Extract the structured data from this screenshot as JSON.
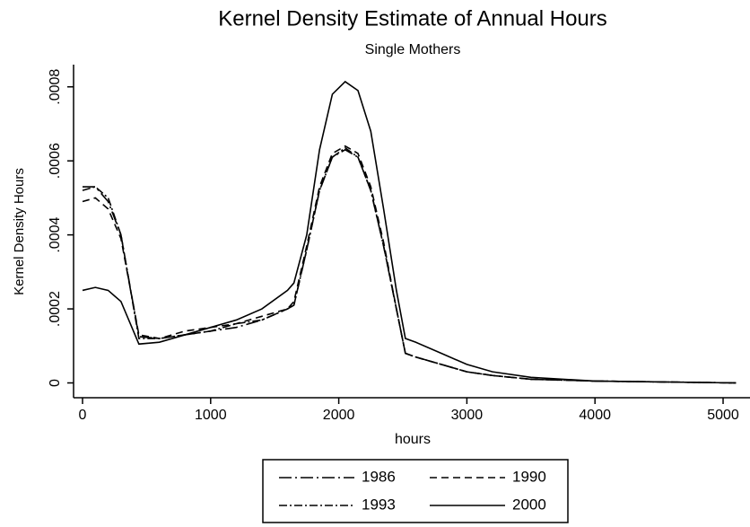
{
  "chart_data": {
    "type": "line",
    "title": "Kernel Density Estimate of Annual Hours",
    "subtitle": "Single Mothers",
    "x_label": "hours",
    "y_label": "Kernel Density Hours",
    "x": [
      0,
      100,
      200,
      300,
      440,
      600,
      800,
      1000,
      1200,
      1400,
      1600,
      1650,
      1750,
      1850,
      1950,
      2050,
      2150,
      2250,
      2350,
      2450,
      2520,
      2600,
      2800,
      3000,
      3200,
      3500,
      4000,
      5100
    ],
    "series": [
      {
        "name": "1986",
        "color": "#000000",
        "dash": "14,4,2,4",
        "values": [
          0.00053,
          0.00053,
          0.00049,
          0.0004,
          0.000125,
          0.00012,
          0.00013,
          0.00014,
          0.00015,
          0.00017,
          0.0002,
          0.00021,
          0.00036,
          0.00052,
          0.00061,
          0.00063,
          0.00061,
          0.00052,
          0.00037,
          0.0002,
          8e-05,
          7e-05,
          5e-05,
          3e-05,
          2e-05,
          1e-05,
          5e-06,
          0
        ]
      },
      {
        "name": "1990",
        "color": "#000000",
        "dash": "8,5",
        "values": [
          0.00049,
          0.0005,
          0.00047,
          0.00039,
          0.00013,
          0.00012,
          0.00014,
          0.00015,
          0.00016,
          0.00018,
          0.0002,
          0.00022,
          0.00037,
          0.00053,
          0.00062,
          0.00064,
          0.00062,
          0.00053,
          0.00038,
          0.0002,
          8e-05,
          7e-05,
          5e-05,
          3e-05,
          2e-05,
          1e-05,
          5e-06,
          0
        ]
      },
      {
        "name": "1993",
        "color": "#000000",
        "dash": "9,3,2,3",
        "values": [
          0.00052,
          0.00053,
          0.0005,
          0.0004,
          0.00012,
          0.00012,
          0.00013,
          0.00014,
          0.00016,
          0.00017,
          0.0002,
          0.00021,
          0.00036,
          0.00052,
          0.00061,
          0.000635,
          0.00061,
          0.00052,
          0.00037,
          0.0002,
          8e-05,
          7e-05,
          5e-05,
          3e-05,
          2e-05,
          1e-05,
          5e-06,
          0
        ]
      },
      {
        "name": "2000",
        "color": "#000000",
        "dash": "none",
        "values": [
          0.00025,
          0.000258,
          0.00025,
          0.00022,
          0.000105,
          0.00011,
          0.00013,
          0.00015,
          0.00017,
          0.0002,
          0.00025,
          0.00027,
          0.0004,
          0.00063,
          0.00078,
          0.000814,
          0.00079,
          0.00068,
          0.00047,
          0.00025,
          0.00012,
          0.00011,
          8e-05,
          5e-05,
          3e-05,
          1.5e-05,
          5e-06,
          0
        ]
      }
    ],
    "xlim": [
      -70,
      5210
    ],
    "ylim": [
      -4e-05,
      0.00086
    ],
    "xticks": [
      0,
      1000,
      2000,
      3000,
      4000,
      5000
    ],
    "yticks": [
      0,
      {
        "value": 0.0002,
        "label": ".0002"
      },
      {
        "value": 0.0004,
        "label": ".0004"
      },
      {
        "value": 0.0006,
        "label": ".0006"
      },
      {
        "value": 0.0008,
        "label": ".0008"
      }
    ],
    "legend": "bottom"
  }
}
